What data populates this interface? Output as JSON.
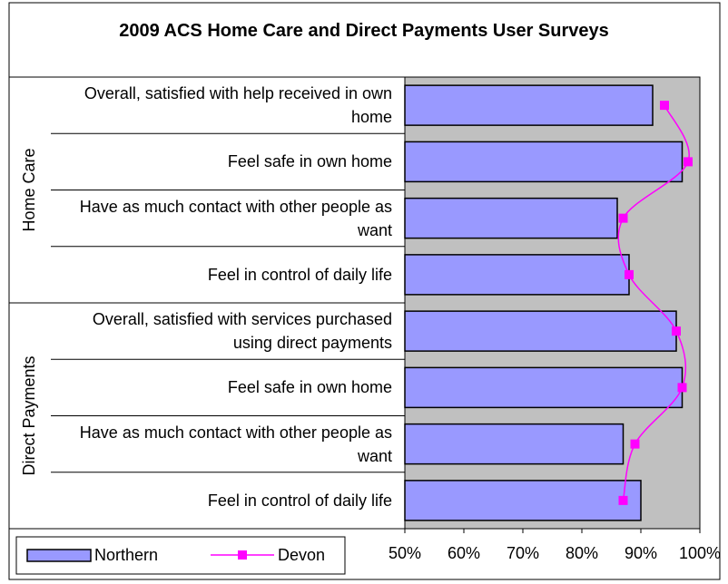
{
  "chart_data": {
    "type": "bar-line",
    "orientation": "horizontal",
    "title": "2009 ACS Home Care and Direct Payments User Surveys",
    "groups": [
      {
        "name": "Home Care",
        "categories": [
          "Overall, satisfied with help received in own home",
          "Feel safe in own home",
          "Have as much contact with other people as want",
          "Feel in control of daily life"
        ]
      },
      {
        "name": "Direct Payments",
        "categories": [
          "Overall, satisfied with services purchased using direct payments",
          "Feel safe in own home",
          "Have as much contact with other people as want",
          "Feel in control of daily life"
        ]
      }
    ],
    "series": [
      {
        "name": "Northern",
        "type": "bar",
        "color": "#9999ff",
        "values": [
          92,
          97,
          86,
          88,
          96,
          97,
          87,
          90
        ]
      },
      {
        "name": "Devon",
        "type": "line",
        "color": "#ff00ff",
        "values": [
          94,
          98,
          87,
          88,
          96,
          97,
          89,
          87
        ]
      }
    ],
    "xlim": [
      50,
      100
    ],
    "xticks": [
      {
        "value": 50,
        "label": "50%"
      },
      {
        "value": 60,
        "label": "60%"
      },
      {
        "value": 70,
        "label": "70%"
      },
      {
        "value": 80,
        "label": "80%"
      },
      {
        "value": 90,
        "label": "90%"
      },
      {
        "value": 100,
        "label": "100%"
      }
    ],
    "grid": false,
    "legend": "bottom-left"
  }
}
